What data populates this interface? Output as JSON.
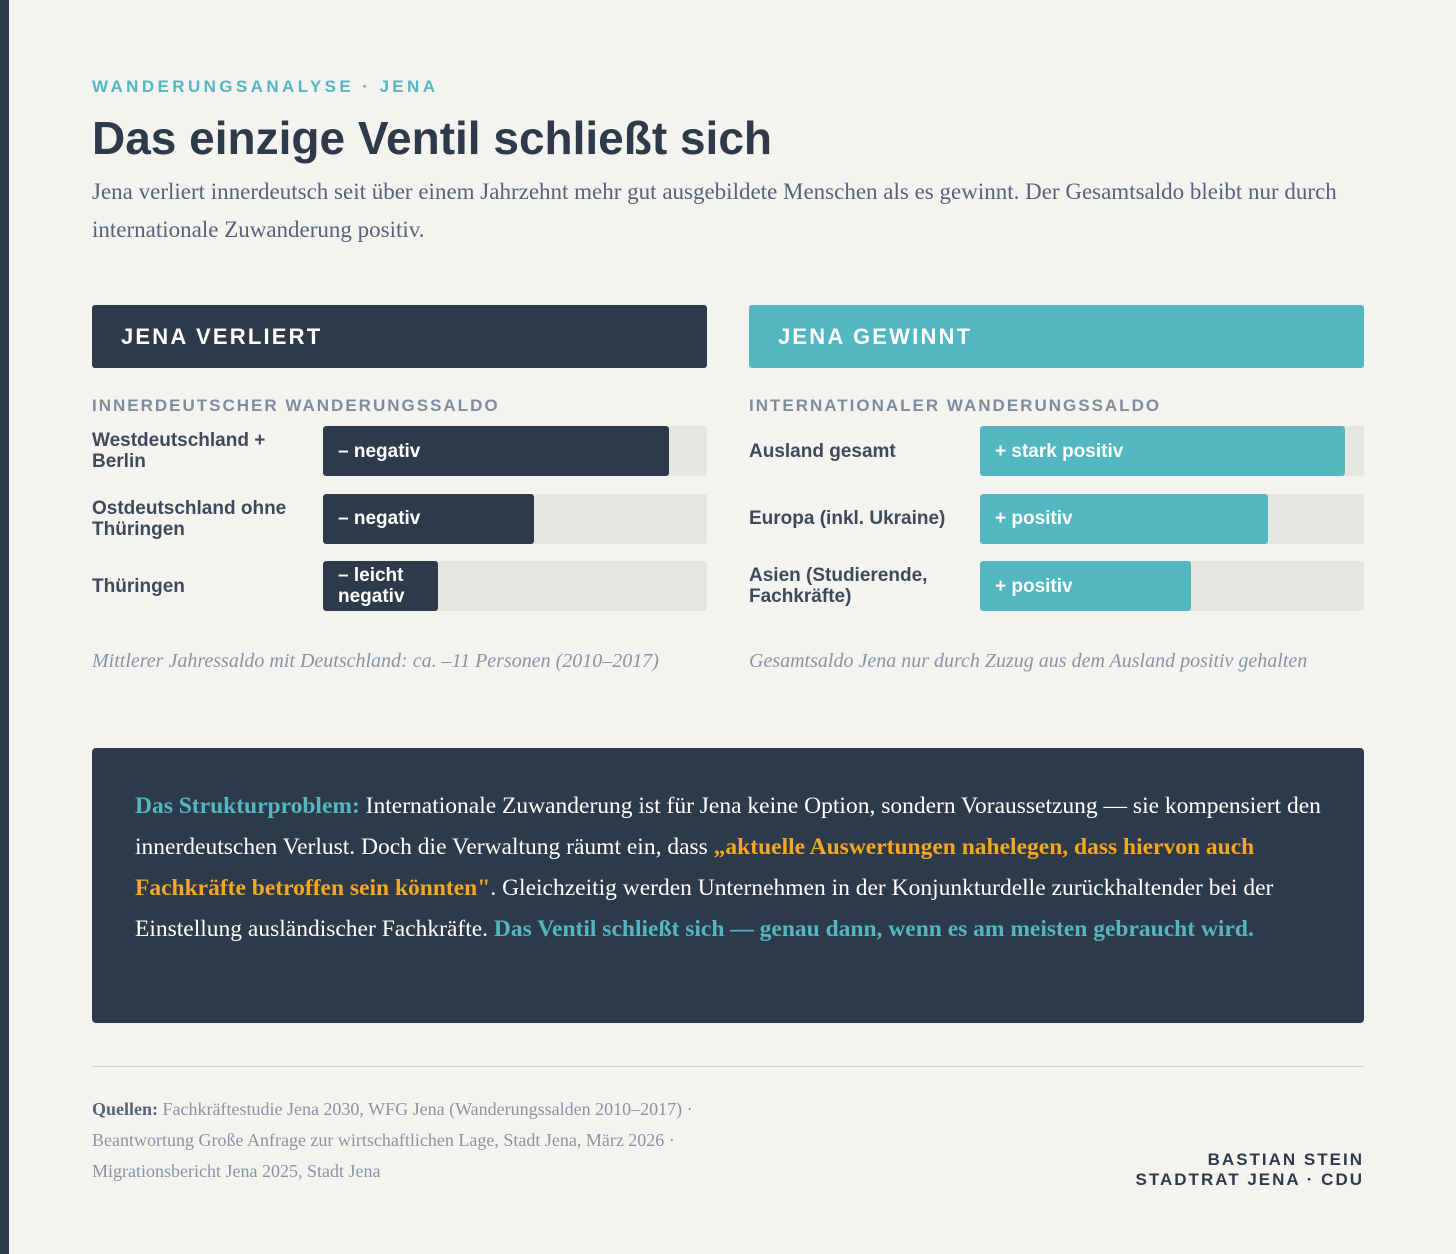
{
  "header": {
    "kicker": "WANDERUNGSANALYSE · JENA",
    "title": "Das einzige Ventil schließt sich",
    "lead": "Jena verliert innerdeutsch seit über einem Jahrzehnt mehr gut ausgebildete Menschen als es gewinnt. Der Gesamtsaldo bleibt nur durch internationale Zuwanderung positiv."
  },
  "colors": {
    "navy": "#2d3a4a",
    "teal": "#52b7c1",
    "orange": "#f5a623",
    "background": "#f4f3f0",
    "track": "#e6e5e2"
  },
  "loses": {
    "title": "JENA VERLIERT",
    "subtitle": "INNERDEUTSCHER WANDERUNGSSALDO",
    "rows": [
      {
        "label": "Westdeutschland + Berlin",
        "value": "– negativ",
        "fill_pct": 90
      },
      {
        "label": "Ostdeutschland ohne Thüringen",
        "value": "– negativ",
        "fill_pct": 55
      },
      {
        "label": "Thüringen",
        "value": "– leicht negativ",
        "fill_pct": 30
      }
    ],
    "note": "Mittlerer Jahressaldo mit Deutschland: ca. –11 Personen (2010–2017)"
  },
  "gains": {
    "title": "JENA GEWINNT",
    "subtitle": "INTERNATIONALER WANDERUNGSSALDO",
    "rows": [
      {
        "label": "Ausland gesamt",
        "value": "+ stark positiv",
        "fill_pct": 95
      },
      {
        "label": "Europa (inkl. Ukraine)",
        "value": "+ positiv",
        "fill_pct": 75
      },
      {
        "label": "Asien (Studierende, Fachkräfte)",
        "value": "+ positiv",
        "fill_pct": 55
      }
    ],
    "note": "Gesamtsaldo Jena nur durch Zuzug aus dem Ausland positiv gehalten"
  },
  "callout": {
    "lead": "Das Strukturproblem:",
    "text1": " Internationale Zuwanderung ist für Jena keine Option, sondern Voraussetzung — sie kompensiert den innerdeutschen Verlust. Doch die Verwaltung räumt ein, dass ",
    "quote": "„aktuelle Auswertungen nahelegen, dass hiervon auch Fachkräfte betroffen sein könnten\"",
    "text2": ". Gleichzeitig werden Unternehmen in der Konjunkturdelle zurückhaltender bei der Einstellung ausländischer Fachkräfte. ",
    "conclusion": "Das Ventil schließt sich — genau dann, wenn es am meisten gebraucht wird."
  },
  "footer": {
    "sources_label": "Quellen:",
    "sources": [
      " Fachkräftestudie Jena 2030, WFG Jena (Wanderungssalden 2010–2017) ·",
      "Beantwortung Große Anfrage zur wirtschaftlichen Lage, Stadt Jena, März 2026 ·",
      "Migrationsbericht Jena 2025, Stadt Jena"
    ],
    "author_name": "BASTIAN STEIN",
    "author_role": "STADTRAT JENA · CDU"
  }
}
